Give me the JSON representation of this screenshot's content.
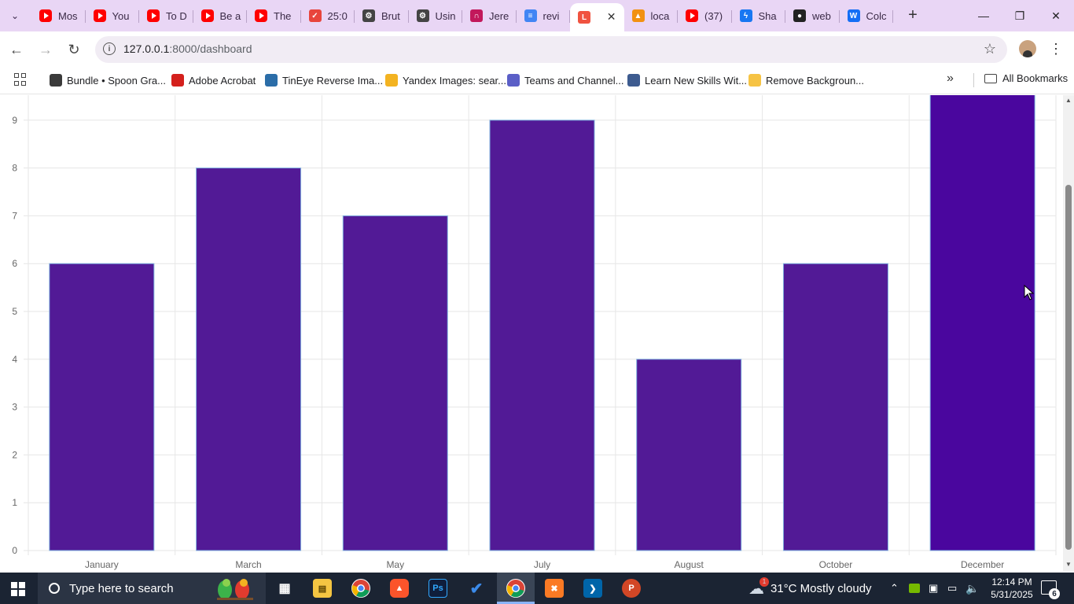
{
  "browser": {
    "tabs": [
      {
        "label": "Mos",
        "icon": "youtube-icon"
      },
      {
        "label": "You",
        "icon": "youtube-icon"
      },
      {
        "label": "To D",
        "icon": "youtube-icon"
      },
      {
        "label": "Be a",
        "icon": "youtube-icon"
      },
      {
        "label": "The",
        "icon": "youtube-icon"
      },
      {
        "label": "25:0",
        "icon": "timer-icon"
      },
      {
        "label": "Brut",
        "icon": "chatgpt-icon"
      },
      {
        "label": "Usin",
        "icon": "chatgpt-icon"
      },
      {
        "label": "Jere",
        "icon": "arc-icon"
      },
      {
        "label": "revi",
        "icon": "docs-icon"
      },
      {
        "label": "",
        "icon": "laravel-icon",
        "active": true
      },
      {
        "label": "loca",
        "icon": "phpmyadmin-icon"
      },
      {
        "label": "(37)",
        "icon": "youtube-icon"
      },
      {
        "label": "Sha",
        "icon": "messenger-icon"
      },
      {
        "label": "web",
        "icon": "github-icon"
      },
      {
        "label": "Colc",
        "icon": "webflow-icon"
      }
    ],
    "url_host": "127.0.0.1",
    "url_path": ":8000/dashboard",
    "bookmarks": [
      {
        "label": "Bundle • Spoon Gra...",
        "icon": "spoon-graphics-icon"
      },
      {
        "label": "Adobe Acrobat",
        "icon": "acrobat-icon"
      },
      {
        "label": "TinEye Reverse Ima...",
        "icon": "tineye-icon"
      },
      {
        "label": "Yandex Images: sear...",
        "icon": "yandex-icon"
      },
      {
        "label": "Teams and Channel...",
        "icon": "teams-icon"
      },
      {
        "label": "Learn New Skills Wit...",
        "icon": "coursera-icon"
      },
      {
        "label": "Remove Backgroun...",
        "icon": "removebg-icon"
      }
    ],
    "all_bookmarks_label": "All Bookmarks"
  },
  "chart_data": {
    "type": "bar",
    "categories": [
      "January",
      "March",
      "May",
      "July",
      "August",
      "October",
      "December"
    ],
    "values": [
      6,
      8,
      7,
      9,
      4,
      6,
      10
    ],
    "ylim": [
      0,
      9.55
    ],
    "yticks": [
      0,
      1,
      2,
      3,
      4,
      5,
      6,
      7,
      8,
      9
    ],
    "bar_color": "#521a96",
    "highlight_bar_color": "#4a069e",
    "bar_border_color": "#7fb2e0",
    "grid": true
  },
  "taskbar": {
    "search_placeholder": "Type here to search",
    "weather": "31°C  Mostly cloudy",
    "time": "12:14 PM",
    "date": "5/31/2025",
    "notification_count": "6",
    "weather_badge": "1"
  }
}
